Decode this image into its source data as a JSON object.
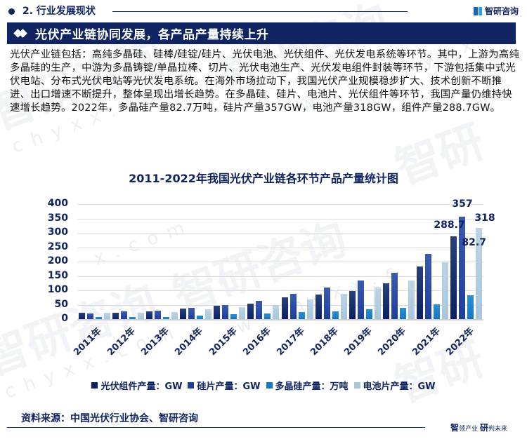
{
  "header": {
    "section_title": "2. 行业发展现状",
    "brand_name": "智研咨询",
    "banner_title": "光伏产业链协同发展，各产品产量持续上升"
  },
  "body_text": "光伏产业链包括：高纯多晶硅、硅棒/硅锭/硅片、光伏电池、光伏组件、光伏发电系统等环节。其中，上游为高纯多晶硅的生产，中游为多晶铸锭/单晶拉棒、切片、光伏电池生产、光伏发电组件封装等环节，下游包括集中式光伏电站、分布式光伏电站等光伏发电系统。在海外市场拉动下，我国光伏产业规模稳步扩大、技术创新不断推进、出口增速不断提升，整体呈现出增长趋势。在多晶硅、硅片、电池片、光伏组件等环节，我国产量仍维持快速增长趋势。2022年，多晶硅产量82.7万吨，硅片产量357GW，电池产量318GW，组件产量288.7GW。",
  "chart_data": {
    "type": "bar",
    "title": "2011-2022年我国光伏产业链各环节产品产量统计图",
    "xlabel": "",
    "ylabel": "",
    "ylim": [
      0,
      400
    ],
    "yticks": [
      "400",
      "350",
      "300",
      "250",
      "200",
      "150",
      "100",
      "50",
      "0"
    ],
    "grid": true,
    "legend_position": "bottom",
    "categories": [
      "2011年",
      "2012年",
      "2013年",
      "2014年",
      "2015年",
      "2016年",
      "2017年",
      "2018年",
      "2019年",
      "2020年",
      "2021年",
      "2022年"
    ],
    "series": [
      {
        "name": "光伏组件产量：GW",
        "color": "#0b1f66",
        "values": [
          21,
          23,
          27.4,
          35.6,
          45.8,
          53.7,
          76,
          85.7,
          98.6,
          124.6,
          182,
          288.7
        ]
      },
      {
        "name": "硅片产量：GW",
        "color": "#1e3f9a",
        "values": [
          20,
          26,
          30,
          38,
          48,
          63,
          87,
          109.2,
          134.7,
          161.3,
          227,
          357
        ]
      },
      {
        "name": "多晶硅产量：万吨",
        "color": "#1577c2",
        "values": [
          8.4,
          7.1,
          8.5,
          13.2,
          16.5,
          19.4,
          24.2,
          25.9,
          34.2,
          39.2,
          50.5,
          82.7
        ]
      },
      {
        "name": "电池片产量：GW",
        "color": "#a8c6dc",
        "values": [
          21,
          21,
          25.1,
          33,
          41,
          49,
          68,
          87.2,
          110.3,
          134.8,
          198,
          318
        ]
      }
    ],
    "data_labels": [
      {
        "category": "2022年",
        "series": "光伏组件产量：GW",
        "text": "288.7"
      },
      {
        "category": "2022年",
        "series": "硅片产量：GW",
        "text": "357"
      },
      {
        "category": "2022年",
        "series": "多晶硅产量：万吨",
        "text": "82.7"
      },
      {
        "category": "2022年",
        "series": "电池片产量：GW",
        "text": "318"
      }
    ]
  },
  "footer": {
    "source": "资料来源：中国光伏行业协会、智研咨询",
    "slogan_big1": "智",
    "slogan_small1": "领产业 ",
    "slogan_big2": "研",
    "slogan_small2": "判未来"
  }
}
